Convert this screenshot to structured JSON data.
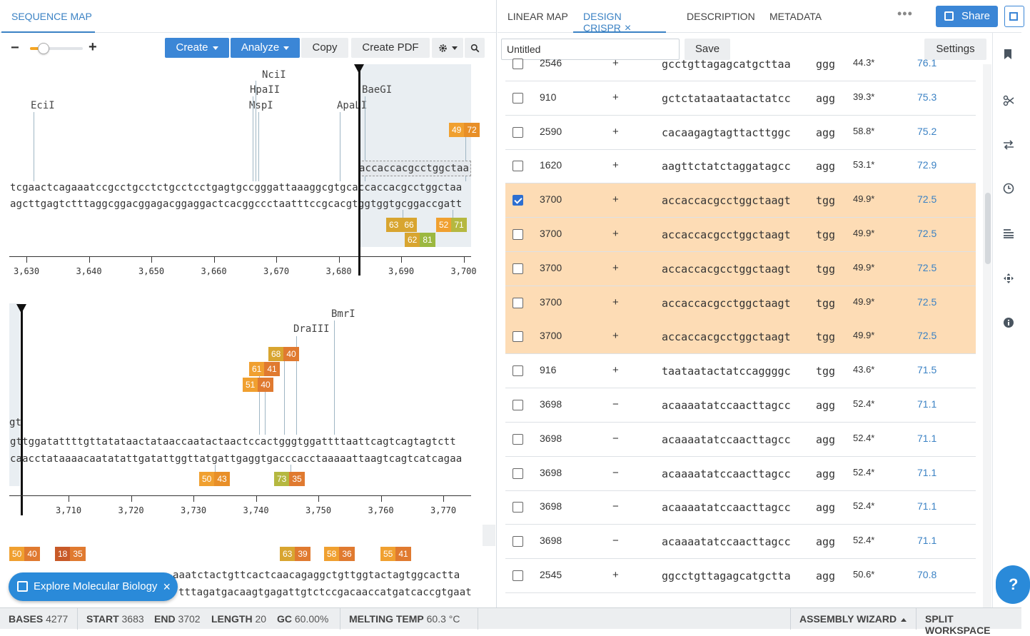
{
  "left": {
    "tab": "SEQUENCE MAP",
    "toolbar": {
      "zoom_out": "−",
      "zoom_in": "+",
      "create": "Create",
      "analyze": "Analyze",
      "copy": "Copy",
      "pdf": "Create PDF"
    },
    "block1": {
      "enzymes": [
        "EciI",
        "NciI",
        "HpaII",
        "MspI",
        "ApaLI",
        "BaeGI"
      ],
      "guide_label": "accaccacgcctggctaa",
      "top": "tcgaactcagaaatccgcctgcctctgcctcctgagtgccgggattaaaggcgtgcaccaccacgcctggctaa",
      "bottom": "agcttgagtctttaggcggacggagacggaggactcacggccctaatttccgcacgtggtggtgcggaccgatt",
      "badges": [
        [
          "49",
          "72"
        ],
        [
          "63",
          "66"
        ],
        [
          "52",
          "71"
        ],
        [
          "62",
          "81"
        ]
      ],
      "ticks": [
        "3,630",
        "3,640",
        "3,650",
        "3,660",
        "3,670",
        "3,680",
        "3,690",
        "3,700"
      ]
    },
    "block2": {
      "enzymes": [
        "BmrI",
        "DraIII"
      ],
      "partial": "gt",
      "top": "gttggatattttgttatataactataaccaatactaactccactgggtggattttaattcagtcagtagtctt",
      "bottom": "caacctataaaacaatatattgatattggttatgattgaggtgacccacctaaaaattaagtcagtcatcagaa",
      "badges": [
        [
          "68",
          "40"
        ],
        [
          "61",
          "41"
        ],
        [
          "51",
          "40"
        ],
        [
          "50",
          "43"
        ],
        [
          "73",
          "35"
        ]
      ],
      "ticks": [
        "3,710",
        "3,720",
        "3,730",
        "3,740",
        "3,750",
        "3,760",
        "3,770"
      ]
    },
    "block3": {
      "badges": [
        [
          "50",
          "40"
        ],
        [
          "18",
          "35"
        ],
        [
          "63",
          "39"
        ],
        [
          "58",
          "36"
        ],
        [
          "55",
          "41"
        ]
      ],
      "top": "aaatctactgttcactcaacagaggctgttggtactagtggcactta",
      "bottom": "tttagatgacaagtgagattgtctccgacaaccatgatcaccgtgaat"
    },
    "explore": "Explore Molecular Biology"
  },
  "right": {
    "tabs": [
      "LINEAR MAP",
      "DESIGN CRISPR",
      "DESCRIPTION",
      "METADATA"
    ],
    "more": "•••",
    "share": "Share",
    "name_value": "Untitled",
    "save": "Save",
    "settings": "Settings",
    "rows": [
      {
        "pos": "2546",
        "strand": "+",
        "seq": "gcctgttagagcatgcttaa",
        "pam": "ggg",
        "gc": "44.3*",
        "score": "76.1",
        "sel": false,
        "checked": false
      },
      {
        "pos": "910",
        "strand": "+",
        "seq": "gctctataataatactatcc",
        "pam": "agg",
        "gc": "39.3*",
        "score": "75.3",
        "sel": false,
        "checked": false
      },
      {
        "pos": "2590",
        "strand": "+",
        "seq": "cacaagagtagttacttggc",
        "pam": "agg",
        "gc": "58.8*",
        "score": "75.2",
        "sel": false,
        "checked": false
      },
      {
        "pos": "1620",
        "strand": "+",
        "seq": "aagttctatctaggatagcc",
        "pam": "agg",
        "gc": "53.1*",
        "score": "72.9",
        "sel": false,
        "checked": false
      },
      {
        "pos": "3700",
        "strand": "+",
        "seq": "accaccacgcctggctaagt",
        "pam": "tgg",
        "gc": "49.9*",
        "score": "72.5",
        "sel": true,
        "checked": true
      },
      {
        "pos": "3700",
        "strand": "+",
        "seq": "accaccacgcctggctaagt",
        "pam": "tgg",
        "gc": "49.9*",
        "score": "72.5",
        "sel": true,
        "checked": false
      },
      {
        "pos": "3700",
        "strand": "+",
        "seq": "accaccacgcctggctaagt",
        "pam": "tgg",
        "gc": "49.9*",
        "score": "72.5",
        "sel": true,
        "checked": false
      },
      {
        "pos": "3700",
        "strand": "+",
        "seq": "accaccacgcctggctaagt",
        "pam": "tgg",
        "gc": "49.9*",
        "score": "72.5",
        "sel": true,
        "checked": false
      },
      {
        "pos": "3700",
        "strand": "+",
        "seq": "accaccacgcctggctaagt",
        "pam": "tgg",
        "gc": "49.9*",
        "score": "72.5",
        "sel": true,
        "checked": false
      },
      {
        "pos": "916",
        "strand": "+",
        "seq": "taataatactatccaggggc",
        "pam": "tgg",
        "gc": "43.6*",
        "score": "71.5",
        "sel": false,
        "checked": false
      },
      {
        "pos": "3698",
        "strand": "−",
        "seq": "acaaaatatccaacttagcc",
        "pam": "agg",
        "gc": "52.4*",
        "score": "71.1",
        "sel": false,
        "checked": false
      },
      {
        "pos": "3698",
        "strand": "−",
        "seq": "acaaaatatccaacttagcc",
        "pam": "agg",
        "gc": "52.4*",
        "score": "71.1",
        "sel": false,
        "checked": false
      },
      {
        "pos": "3698",
        "strand": "−",
        "seq": "acaaaatatccaacttagcc",
        "pam": "agg",
        "gc": "52.4*",
        "score": "71.1",
        "sel": false,
        "checked": false
      },
      {
        "pos": "3698",
        "strand": "−",
        "seq": "acaaaatatccaacttagcc",
        "pam": "agg",
        "gc": "52.4*",
        "score": "71.1",
        "sel": false,
        "checked": false
      },
      {
        "pos": "3698",
        "strand": "−",
        "seq": "acaaaatatccaacttagcc",
        "pam": "agg",
        "gc": "52.4*",
        "score": "71.1",
        "sel": false,
        "checked": false
      },
      {
        "pos": "2545",
        "strand": "+",
        "seq": "ggcctgttagagcatgctta",
        "pam": "agg",
        "gc": "50.6*",
        "score": "70.8",
        "sel": false,
        "checked": false
      }
    ],
    "help": "?"
  },
  "status": {
    "bases_label": "BASES",
    "bases": "4277",
    "start_label": "START",
    "start": "3683",
    "end_label": "END",
    "end": "3702",
    "length_label": "LENGTH",
    "length": "20",
    "gc_label": "GC",
    "gc": "60.00%",
    "tm_label": "MELTING TEMP",
    "tm": "60.3 °C",
    "assembly": "ASSEMBLY WIZARD",
    "split": "SPLIT WORKSPACE"
  },
  "colors": {
    "accent": "#3b86d6",
    "selected_row": "#fddcb5",
    "badge_orange": "#f0a030",
    "badge_dark": "#e07a30",
    "badge_olive": "#b5b840",
    "badge_red": "#c85a28"
  }
}
